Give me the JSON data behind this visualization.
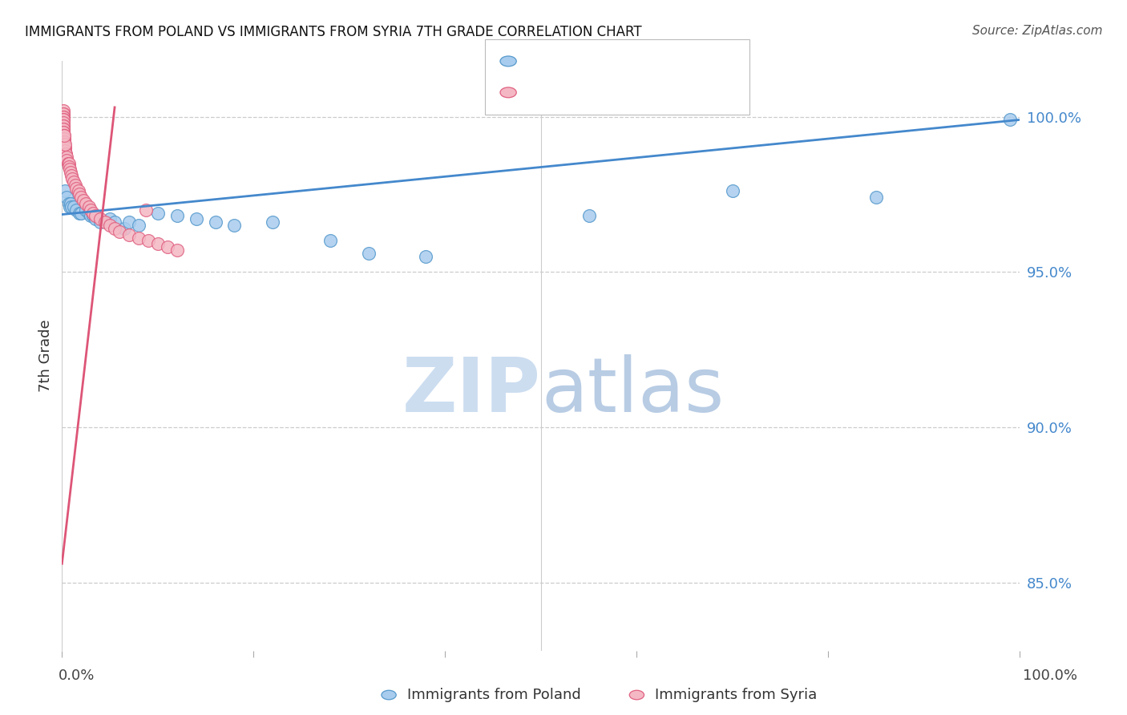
{
  "title": "IMMIGRANTS FROM POLAND VS IMMIGRANTS FROM SYRIA 7TH GRADE CORRELATION CHART",
  "source": "Source: ZipAtlas.com",
  "ylabel": "7th Grade",
  "ytick_labels": [
    "100.0%",
    "95.0%",
    "90.0%",
    "85.0%"
  ],
  "ytick_values": [
    1.0,
    0.95,
    0.9,
    0.85
  ],
  "xlim": [
    0.0,
    1.0
  ],
  "ylim": [
    0.828,
    1.018
  ],
  "blue_color": "#a8ccee",
  "pink_color": "#f4b8c4",
  "blue_edge_color": "#5599cc",
  "pink_edge_color": "#e06080",
  "blue_line_color": "#4488cc",
  "pink_line_color": "#dd5577",
  "blue_scatter_x": [
    0.002,
    0.003,
    0.005,
    0.007,
    0.008,
    0.009,
    0.01,
    0.012,
    0.015,
    0.018,
    0.02,
    0.025,
    0.028,
    0.03,
    0.032,
    0.035,
    0.04,
    0.05,
    0.055,
    0.065,
    0.07,
    0.08,
    0.1,
    0.12,
    0.14,
    0.16,
    0.18,
    0.22,
    0.28,
    0.32,
    0.38,
    0.55,
    0.7,
    0.85,
    0.99
  ],
  "blue_scatter_y": [
    0.989,
    0.976,
    0.974,
    0.972,
    0.971,
    0.972,
    0.971,
    0.971,
    0.97,
    0.969,
    0.969,
    0.97,
    0.969,
    0.968,
    0.968,
    0.967,
    0.966,
    0.967,
    0.966,
    0.964,
    0.966,
    0.965,
    0.969,
    0.968,
    0.967,
    0.966,
    0.965,
    0.966,
    0.96,
    0.956,
    0.955,
    0.968,
    0.976,
    0.974,
    0.999
  ],
  "pink_scatter_x": [
    0.001,
    0.001,
    0.001,
    0.001,
    0.001,
    0.001,
    0.001,
    0.001,
    0.001,
    0.001,
    0.001,
    0.001,
    0.001,
    0.001,
    0.002,
    0.002,
    0.002,
    0.002,
    0.002,
    0.002,
    0.003,
    0.003,
    0.003,
    0.004,
    0.004,
    0.005,
    0.005,
    0.006,
    0.007,
    0.007,
    0.008,
    0.009,
    0.01,
    0.011,
    0.012,
    0.014,
    0.015,
    0.017,
    0.018,
    0.02,
    0.022,
    0.025,
    0.028,
    0.03,
    0.032,
    0.035,
    0.04,
    0.045,
    0.05,
    0.055,
    0.06,
    0.07,
    0.08,
    0.09,
    0.1,
    0.11,
    0.12,
    0.003,
    0.002,
    0.088
  ],
  "pink_scatter_y": [
    1.002,
    1.001,
    1.001,
    1.0,
    1.0,
    0.999,
    0.999,
    0.998,
    0.997,
    0.997,
    0.996,
    0.996,
    0.995,
    0.995,
    0.994,
    0.993,
    0.993,
    0.992,
    0.992,
    0.991,
    0.99,
    0.99,
    0.989,
    0.988,
    0.988,
    0.987,
    0.986,
    0.985,
    0.985,
    0.984,
    0.983,
    0.982,
    0.981,
    0.98,
    0.979,
    0.978,
    0.977,
    0.976,
    0.975,
    0.974,
    0.973,
    0.972,
    0.971,
    0.97,
    0.969,
    0.968,
    0.967,
    0.966,
    0.965,
    0.964,
    0.963,
    0.962,
    0.961,
    0.96,
    0.959,
    0.958,
    0.957,
    0.991,
    0.994,
    0.97
  ],
  "blue_regline_x": [
    0.0,
    1.0
  ],
  "blue_regline_y": [
    0.9685,
    0.999
  ],
  "pink_regline_x": [
    0.0,
    0.055
  ],
  "pink_regline_y": [
    0.856,
    1.003
  ],
  "watermark_zip_color": "#ccddf0",
  "watermark_atlas_color": "#b8cce4",
  "grid_color": "#cccccc",
  "tick_color": "#aaaaaa"
}
